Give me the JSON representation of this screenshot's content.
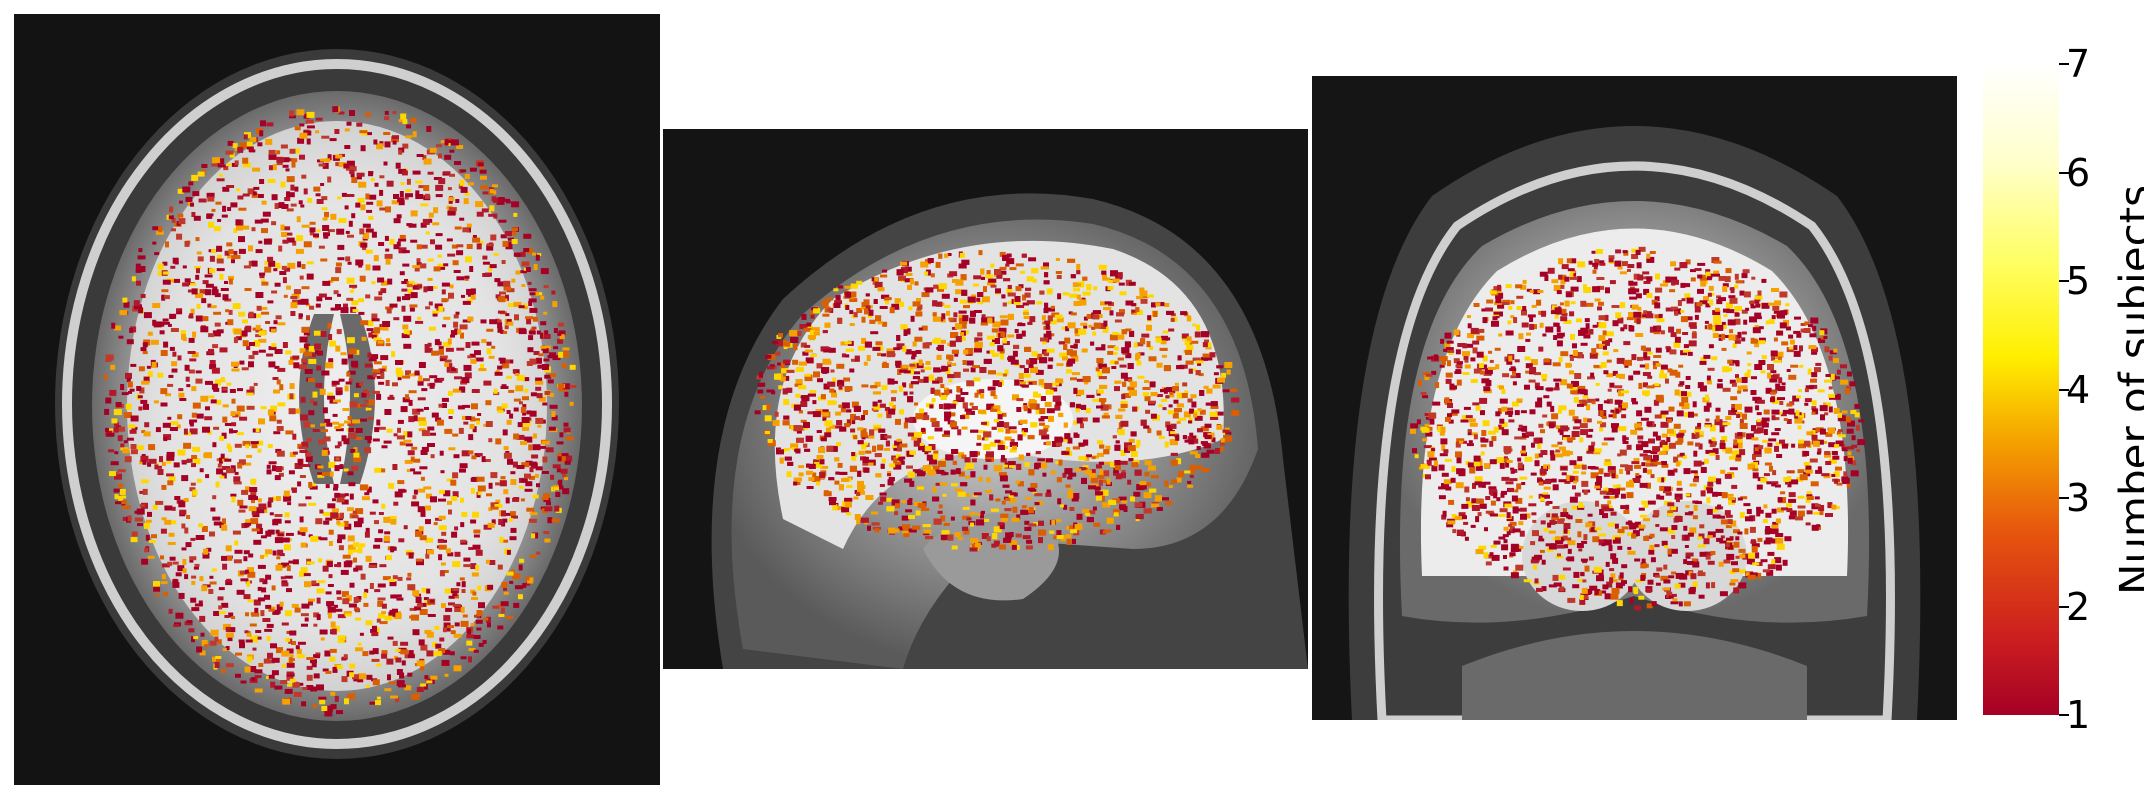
{
  "panels": [
    {
      "view": "axial"
    },
    {
      "view": "sagittal"
    },
    {
      "view": "coronal"
    }
  ],
  "colorbar": {
    "label": "Number of subjects",
    "min": 1,
    "max": 7,
    "ticks": [
      "1",
      "2",
      "3",
      "4",
      "5",
      "6",
      "7"
    ],
    "colors": {
      "low": "#a50026",
      "mid": "#ffef00",
      "high": "#ffffff"
    }
  }
}
